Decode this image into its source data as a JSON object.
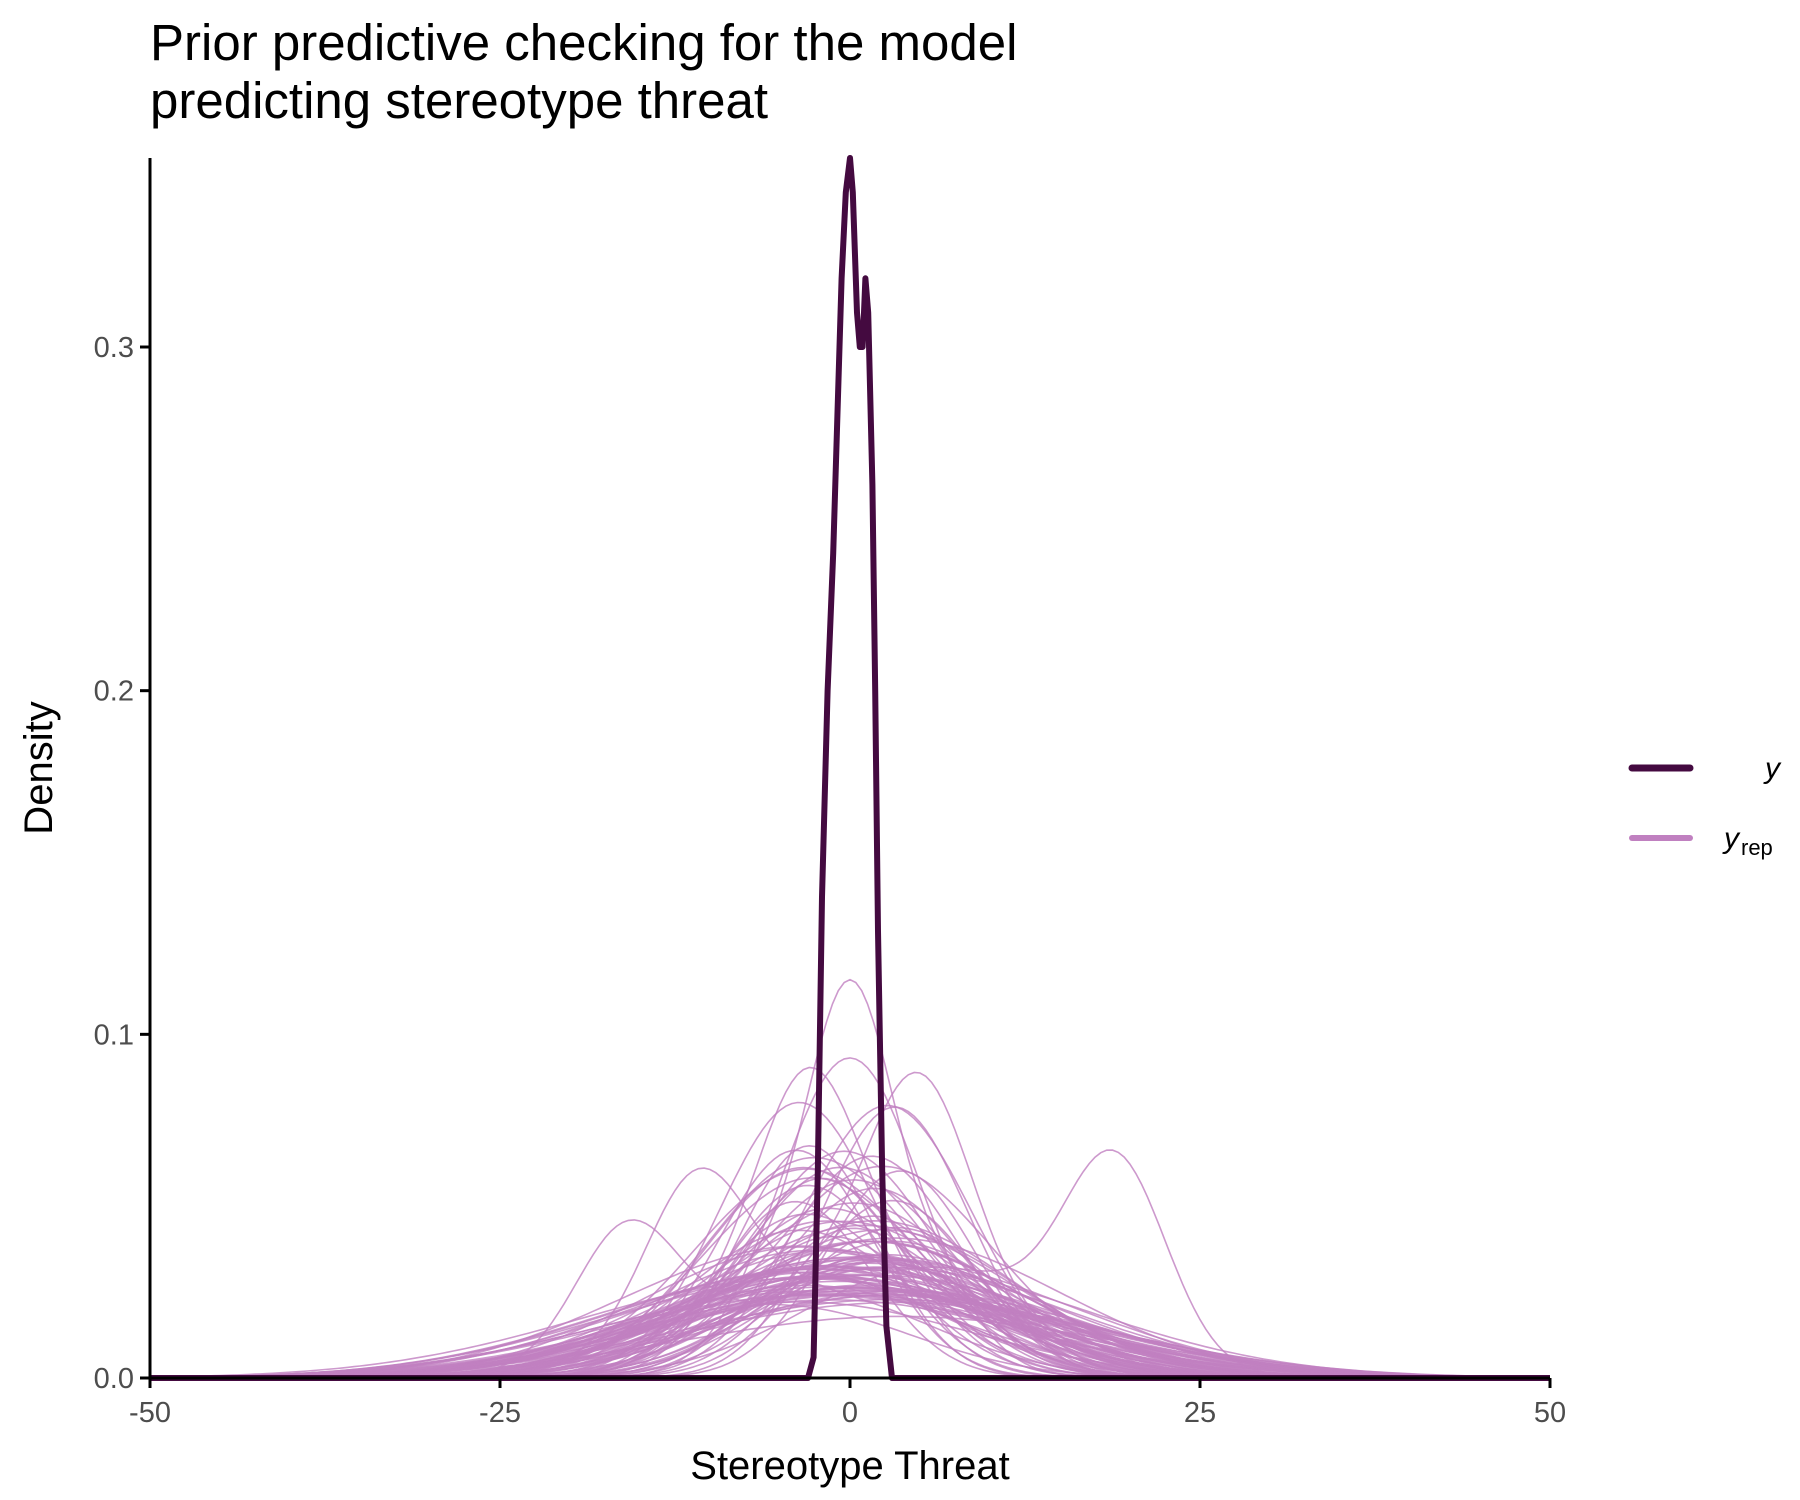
{
  "chart_data": {
    "type": "line",
    "title_lines": [
      "Prior predictive checking for the model",
      "predicting stereotype threat"
    ],
    "xlabel": "Stereotype Threat",
    "ylabel": "Density",
    "xlim": [
      -50,
      50
    ],
    "ylim": [
      0,
      0.355
    ],
    "x_ticks": [
      -50,
      -25,
      0,
      25,
      50
    ],
    "x_tick_labels": [
      "-50",
      "-25",
      "0",
      "25",
      "50"
    ],
    "y_ticks": [
      0.0,
      0.1,
      0.2,
      0.3
    ],
    "y_tick_labels": [
      "0.0",
      "0.1",
      "0.2",
      "0.3"
    ],
    "grid": false,
    "legend_position": "right",
    "legend": [
      {
        "key": "y",
        "label": "y",
        "subscript": "",
        "color": "#440a40"
      },
      {
        "key": "yrep",
        "label": "y",
        "subscript": "rep",
        "color": "#c080c0"
      }
    ],
    "series": [
      {
        "name": "y",
        "color": "#440a40",
        "x": [
          -50,
          -3,
          -2.6,
          -2.3,
          -2.0,
          -1.6,
          -1.2,
          -0.9,
          -0.6,
          -0.3,
          0.0,
          0.2,
          0.5,
          0.7,
          0.9,
          1.1,
          1.3,
          1.6,
          1.8,
          2.0,
          2.3,
          2.6,
          3.0,
          50
        ],
        "y": [
          0,
          0,
          0.006,
          0.06,
          0.14,
          0.2,
          0.24,
          0.28,
          0.32,
          0.345,
          0.355,
          0.345,
          0.31,
          0.3,
          0.3,
          0.32,
          0.31,
          0.26,
          0.2,
          0.13,
          0.06,
          0.015,
          0,
          0
        ]
      }
    ],
    "replicate_draws": {
      "name": "yrep",
      "color": "#c080c0",
      "count": 100,
      "notable_peaks": [
        {
          "x": 0,
          "y": 0.122
        },
        {
          "x": 19,
          "y": 0.092
        },
        {
          "x": -16,
          "y": 0.06
        },
        {
          "x": -11,
          "y": 0.072
        },
        {
          "x": -3,
          "y": 0.096
        },
        {
          "x": 5,
          "y": 0.096
        }
      ]
    }
  }
}
